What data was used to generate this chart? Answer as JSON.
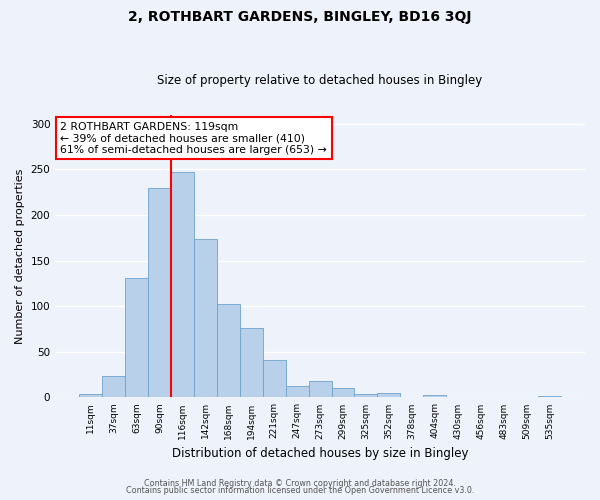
{
  "title": "2, ROTHBART GARDENS, BINGLEY, BD16 3QJ",
  "subtitle": "Size of property relative to detached houses in Bingley",
  "xlabel": "Distribution of detached houses by size in Bingley",
  "ylabel": "Number of detached properties",
  "bar_labels": [
    "11sqm",
    "37sqm",
    "63sqm",
    "90sqm",
    "116sqm",
    "142sqm",
    "168sqm",
    "194sqm",
    "221sqm",
    "247sqm",
    "273sqm",
    "299sqm",
    "325sqm",
    "352sqm",
    "378sqm",
    "404sqm",
    "430sqm",
    "456sqm",
    "483sqm",
    "509sqm",
    "535sqm"
  ],
  "bar_values": [
    4,
    23,
    131,
    229,
    247,
    174,
    102,
    76,
    41,
    13,
    18,
    10,
    4,
    5,
    0,
    3,
    0,
    0,
    0,
    0,
    2
  ],
  "bar_color": "#b8d0ea",
  "bar_edge_color": "#6ea3cc",
  "vline_x_index": 4,
  "vline_color": "red",
  "ylim": [
    0,
    310
  ],
  "yticks": [
    0,
    50,
    100,
    150,
    200,
    250,
    300
  ],
  "annotation_text": "2 ROTHBART GARDENS: 119sqm\n← 39% of detached houses are smaller (410)\n61% of semi-detached houses are larger (653) →",
  "annotation_box_color": "white",
  "annotation_box_edgecolor": "red",
  "footer_line1": "Contains HM Land Registry data © Crown copyright and database right 2024.",
  "footer_line2": "Contains public sector information licensed under the Open Government Licence v3.0.",
  "background_color": "#eef2fb",
  "grid_color": "white",
  "title_fontsize": 10,
  "subtitle_fontsize": 8.5,
  "ylabel_fontsize": 8,
  "xlabel_fontsize": 8.5,
  "tick_fontsize": 6.5,
  "annotation_fontsize": 7.8,
  "footer_fontsize": 5.8
}
